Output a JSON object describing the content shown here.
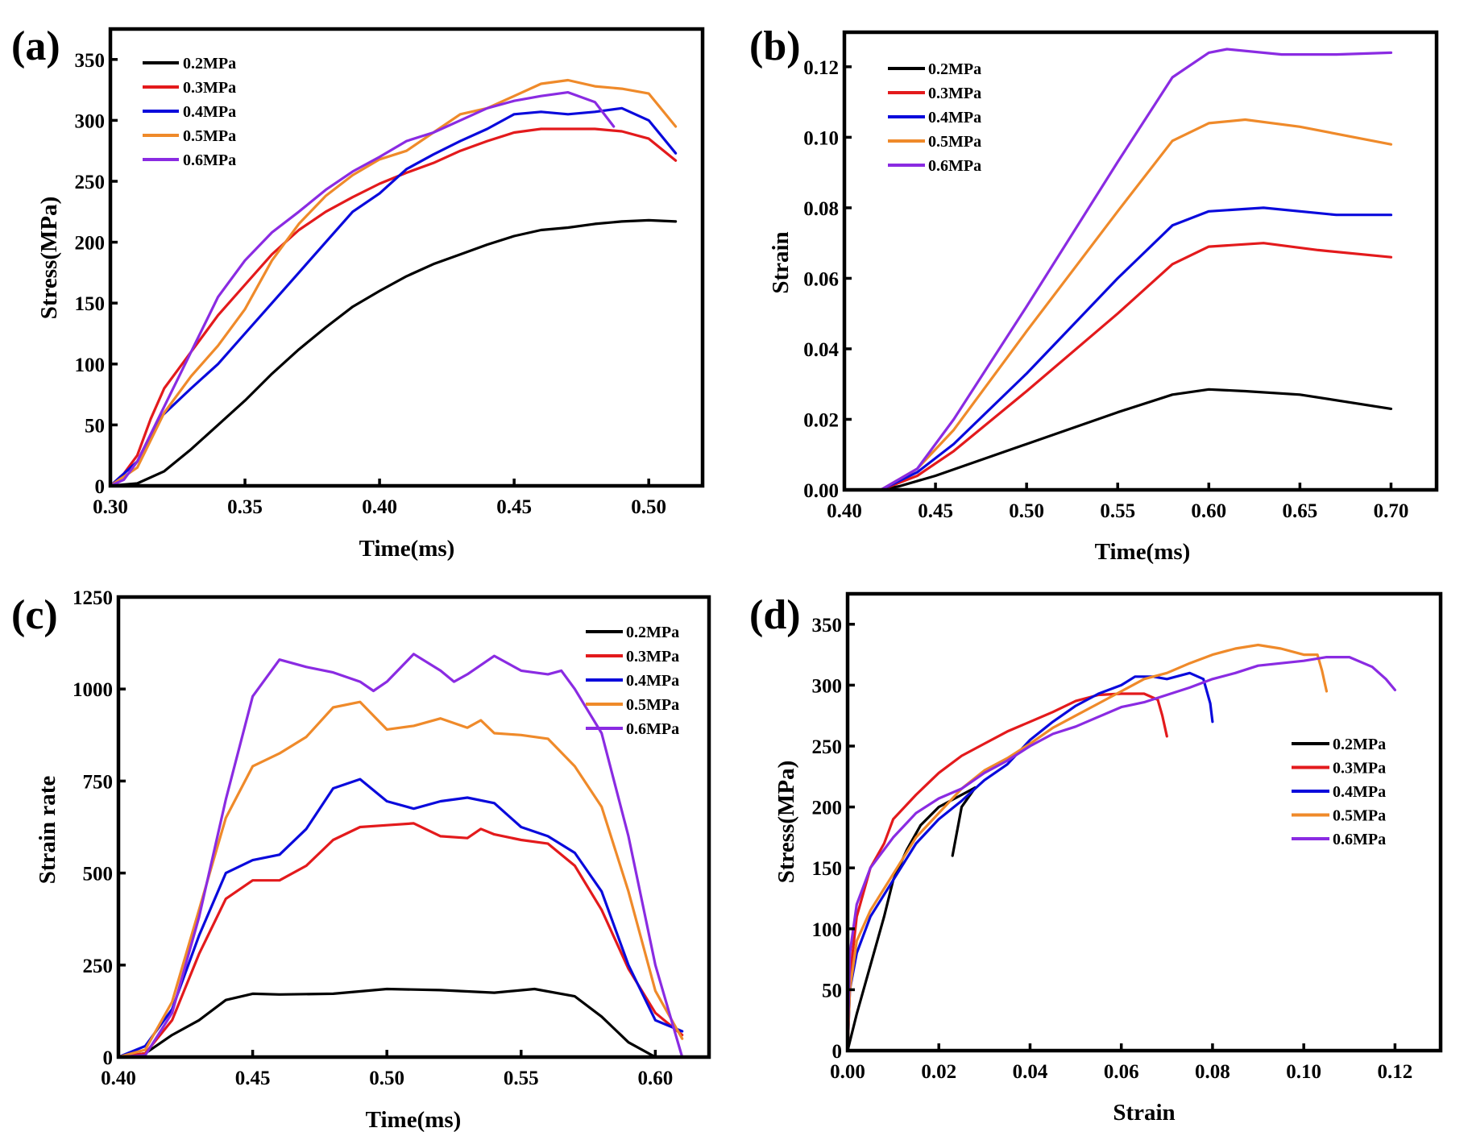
{
  "chart_data": [
    {
      "id": "a",
      "type": "line",
      "panel_label": "(a)",
      "title": "",
      "xlabel": "Time(ms)",
      "ylabel": "Stress(MPa)",
      "xlim": [
        0.3,
        0.52
      ],
      "ylim": [
        0,
        375
      ],
      "xticks": [
        0.3,
        0.35,
        0.4,
        0.45,
        0.5
      ],
      "xtick_labels": [
        "0.30",
        "0.35",
        "0.40",
        "0.45",
        "0.50"
      ],
      "yticks": [
        0,
        50,
        100,
        150,
        200,
        250,
        300,
        350
      ],
      "ytick_labels": [
        "0",
        "50",
        "100",
        "150",
        "200",
        "250",
        "300",
        "350"
      ],
      "grid": false,
      "legend_position": "top-left",
      "series": [
        {
          "name": "0.2MPa",
          "color": "#000000",
          "x": [
            0.3,
            0.31,
            0.32,
            0.33,
            0.34,
            0.35,
            0.36,
            0.37,
            0.38,
            0.39,
            0.4,
            0.41,
            0.42,
            0.43,
            0.44,
            0.45,
            0.46,
            0.47,
            0.48,
            0.49,
            0.5,
            0.51
          ],
          "y": [
            0,
            2,
            12,
            30,
            50,
            70,
            92,
            112,
            130,
            147,
            160,
            172,
            182,
            190,
            198,
            205,
            210,
            212,
            215,
            217,
            218,
            217
          ]
        },
        {
          "name": "0.3MPa",
          "color": "#e31a1c",
          "x": [
            0.3,
            0.305,
            0.31,
            0.315,
            0.32,
            0.325,
            0.33,
            0.34,
            0.35,
            0.36,
            0.37,
            0.38,
            0.39,
            0.4,
            0.41,
            0.42,
            0.43,
            0.44,
            0.45,
            0.46,
            0.47,
            0.48,
            0.49,
            0.5,
            0.51
          ],
          "y": [
            0,
            10,
            25,
            55,
            80,
            95,
            110,
            140,
            165,
            190,
            210,
            225,
            237,
            248,
            257,
            265,
            275,
            283,
            290,
            293,
            293,
            293,
            291,
            285,
            267
          ]
        },
        {
          "name": "0.4MPa",
          "color": "#0a0adc",
          "x": [
            0.3,
            0.31,
            0.318,
            0.33,
            0.34,
            0.35,
            0.36,
            0.37,
            0.38,
            0.39,
            0.4,
            0.41,
            0.42,
            0.43,
            0.44,
            0.45,
            0.46,
            0.47,
            0.48,
            0.49,
            0.5,
            0.51
          ],
          "y": [
            0,
            20,
            55,
            80,
            100,
            125,
            150,
            175,
            200,
            225,
            240,
            260,
            272,
            283,
            293,
            305,
            307,
            305,
            307,
            310,
            300,
            273
          ]
        },
        {
          "name": "0.5MPa",
          "color": "#ef8a2a",
          "x": [
            0.3,
            0.31,
            0.32,
            0.33,
            0.34,
            0.35,
            0.36,
            0.37,
            0.38,
            0.39,
            0.4,
            0.41,
            0.42,
            0.43,
            0.44,
            0.45,
            0.46,
            0.47,
            0.48,
            0.49,
            0.5,
            0.51
          ],
          "y": [
            0,
            15,
            60,
            90,
            115,
            145,
            185,
            215,
            238,
            255,
            268,
            275,
            290,
            305,
            310,
            320,
            330,
            333,
            328,
            326,
            322,
            295
          ]
        },
        {
          "name": "0.6MPa",
          "color": "#8a2be2",
          "x": [
            0.3,
            0.305,
            0.31,
            0.32,
            0.33,
            0.34,
            0.35,
            0.36,
            0.37,
            0.38,
            0.39,
            0.4,
            0.41,
            0.42,
            0.43,
            0.44,
            0.45,
            0.46,
            0.47,
            0.48,
            0.487
          ],
          "y": [
            0,
            5,
            20,
            65,
            110,
            155,
            185,
            208,
            225,
            243,
            258,
            270,
            283,
            290,
            300,
            310,
            316,
            320,
            323,
            315,
            295
          ]
        }
      ]
    },
    {
      "id": "b",
      "type": "line",
      "panel_label": "(b)",
      "title": "",
      "xlabel": "Time(ms)",
      "ylabel": "Strain",
      "xlim": [
        0.4,
        0.725
      ],
      "ylim": [
        0,
        0.1298
      ],
      "xticks": [
        0.4,
        0.45,
        0.5,
        0.55,
        0.6,
        0.65,
        0.7
      ],
      "xtick_labels": [
        "0.40",
        "0.45",
        "0.50",
        "0.55",
        "0.60",
        "0.65",
        "0.70"
      ],
      "yticks": [
        0.0,
        0.02,
        0.04,
        0.06,
        0.08,
        0.1,
        0.12
      ],
      "ytick_labels": [
        "0.00",
        "0.02",
        "0.04",
        "0.06",
        "0.08",
        "0.10",
        "0.12"
      ],
      "grid": false,
      "legend_position": "top-left",
      "series": [
        {
          "name": "0.2MPa",
          "color": "#000000",
          "x": [
            0.4,
            0.42,
            0.43,
            0.45,
            0.5,
            0.55,
            0.58,
            0.6,
            0.62,
            0.65,
            0.7
          ],
          "y": [
            0,
            0,
            0.001,
            0.004,
            0.013,
            0.022,
            0.027,
            0.0285,
            0.028,
            0.027,
            0.023
          ]
        },
        {
          "name": "0.3MPa",
          "color": "#e31a1c",
          "x": [
            0.4,
            0.42,
            0.44,
            0.46,
            0.5,
            0.55,
            0.58,
            0.6,
            0.63,
            0.66,
            0.7
          ],
          "y": [
            0,
            0,
            0.004,
            0.011,
            0.028,
            0.05,
            0.064,
            0.069,
            0.07,
            0.068,
            0.066
          ]
        },
        {
          "name": "0.4MPa",
          "color": "#0a0adc",
          "x": [
            0.4,
            0.42,
            0.44,
            0.46,
            0.5,
            0.55,
            0.58,
            0.6,
            0.63,
            0.67,
            0.7
          ],
          "y": [
            0,
            0,
            0.005,
            0.013,
            0.033,
            0.06,
            0.075,
            0.079,
            0.08,
            0.078,
            0.078
          ]
        },
        {
          "name": "0.5MPa",
          "color": "#ef8a2a",
          "x": [
            0.4,
            0.42,
            0.44,
            0.46,
            0.5,
            0.55,
            0.58,
            0.6,
            0.62,
            0.65,
            0.7
          ],
          "y": [
            0,
            0,
            0.006,
            0.017,
            0.045,
            0.079,
            0.099,
            0.104,
            0.105,
            0.103,
            0.098
          ]
        },
        {
          "name": "0.6MPa",
          "color": "#8a2be2",
          "x": [
            0.4,
            0.42,
            0.44,
            0.46,
            0.5,
            0.55,
            0.58,
            0.6,
            0.61,
            0.64,
            0.67,
            0.7
          ],
          "y": [
            0,
            0,
            0.006,
            0.02,
            0.052,
            0.093,
            0.117,
            0.124,
            0.125,
            0.1235,
            0.1235,
            0.124
          ]
        }
      ]
    },
    {
      "id": "c",
      "type": "line",
      "panel_label": "(c)",
      "title": "",
      "xlabel": "Time(ms)",
      "ylabel": "Strain rate",
      "xlim": [
        0.4,
        0.62
      ],
      "ylim": [
        0,
        1250
      ],
      "xticks": [
        0.4,
        0.45,
        0.5,
        0.55,
        0.6
      ],
      "xtick_labels": [
        "0.40",
        "0.45",
        "0.50",
        "0.55",
        "0.60"
      ],
      "yticks": [
        0,
        250,
        500,
        750,
        1000,
        1250
      ],
      "ytick_labels": [
        "0",
        "250",
        "500",
        "750",
        "1000",
        "1250"
      ],
      "grid": false,
      "legend_position": "top-right",
      "series": [
        {
          "name": "0.2MPa",
          "color": "#000000",
          "x": [
            0.4,
            0.41,
            0.42,
            0.43,
            0.44,
            0.45,
            0.46,
            0.48,
            0.5,
            0.52,
            0.54,
            0.555,
            0.57,
            0.58,
            0.59,
            0.6
          ],
          "y": [
            0,
            10,
            60,
            100,
            155,
            172,
            170,
            172,
            185,
            182,
            175,
            185,
            165,
            110,
            40,
            0
          ]
        },
        {
          "name": "0.3MPa",
          "color": "#e31a1c",
          "x": [
            0.4,
            0.41,
            0.42,
            0.43,
            0.44,
            0.45,
            0.46,
            0.47,
            0.48,
            0.49,
            0.5,
            0.51,
            0.52,
            0.53,
            0.535,
            0.54,
            0.55,
            0.56,
            0.57,
            0.58,
            0.59,
            0.6,
            0.61
          ],
          "y": [
            0,
            10,
            100,
            280,
            430,
            480,
            480,
            520,
            590,
            625,
            630,
            635,
            600,
            595,
            620,
            605,
            590,
            580,
            520,
            400,
            240,
            120,
            60
          ]
        },
        {
          "name": "0.4MPa",
          "color": "#0a0adc",
          "x": [
            0.4,
            0.41,
            0.42,
            0.43,
            0.44,
            0.45,
            0.46,
            0.47,
            0.48,
            0.49,
            0.5,
            0.51,
            0.52,
            0.53,
            0.54,
            0.55,
            0.56,
            0.57,
            0.58,
            0.59,
            0.6,
            0.61
          ],
          "y": [
            0,
            30,
            130,
            330,
            500,
            535,
            550,
            620,
            730,
            755,
            695,
            675,
            695,
            705,
            690,
            625,
            600,
            555,
            450,
            250,
            100,
            70
          ]
        },
        {
          "name": "0.5MPa",
          "color": "#ef8a2a",
          "x": [
            0.4,
            0.41,
            0.42,
            0.43,
            0.44,
            0.45,
            0.46,
            0.47,
            0.48,
            0.49,
            0.5,
            0.51,
            0.52,
            0.53,
            0.535,
            0.54,
            0.55,
            0.56,
            0.57,
            0.58,
            0.59,
            0.6,
            0.61
          ],
          "y": [
            0,
            20,
            150,
            400,
            650,
            790,
            825,
            870,
            950,
            965,
            890,
            900,
            920,
            895,
            915,
            880,
            875,
            865,
            790,
            680,
            450,
            180,
            50
          ]
        },
        {
          "name": "0.6MPa",
          "color": "#8a2be2",
          "x": [
            0.4,
            0.41,
            0.42,
            0.43,
            0.44,
            0.45,
            0.46,
            0.47,
            0.48,
            0.49,
            0.495,
            0.5,
            0.51,
            0.52,
            0.525,
            0.53,
            0.54,
            0.55,
            0.56,
            0.565,
            0.57,
            0.58,
            0.59,
            0.6,
            0.61
          ],
          "y": [
            0,
            5,
            120,
            380,
            700,
            980,
            1080,
            1060,
            1045,
            1020,
            995,
            1020,
            1095,
            1050,
            1020,
            1040,
            1090,
            1050,
            1040,
            1050,
            1000,
            880,
            600,
            250,
            0
          ]
        }
      ]
    },
    {
      "id": "d",
      "type": "line",
      "panel_label": "(d)",
      "title": "",
      "xlabel": "Strain",
      "ylabel": "Stress(MPa)",
      "xlim": [
        0.0,
        0.13
      ],
      "ylim": [
        0,
        375
      ],
      "xticks": [
        0.0,
        0.02,
        0.04,
        0.06,
        0.08,
        0.1,
        0.12
      ],
      "xtick_labels": [
        "0.00",
        "0.02",
        "0.04",
        "0.06",
        "0.08",
        "0.10",
        "0.12"
      ],
      "yticks": [
        0,
        50,
        100,
        150,
        200,
        250,
        300,
        350
      ],
      "ytick_labels": [
        "0",
        "50",
        "100",
        "150",
        "200",
        "250",
        "300",
        "350"
      ],
      "grid": false,
      "legend_position": "right",
      "series": [
        {
          "name": "0.2MPa",
          "color": "#000000",
          "x": [
            0.0,
            0.002,
            0.005,
            0.008,
            0.01,
            0.013,
            0.016,
            0.02,
            0.024,
            0.026,
            0.028,
            0.025,
            0.023
          ],
          "y": [
            0,
            30,
            70,
            110,
            140,
            165,
            185,
            200,
            208,
            212,
            216,
            200,
            160
          ]
        },
        {
          "name": "0.3MPa",
          "color": "#e31a1c",
          "x": [
            0,
            0.0005,
            0.002,
            0.005,
            0.008,
            0.01,
            0.015,
            0.02,
            0.025,
            0.03,
            0.035,
            0.04,
            0.045,
            0.05,
            0.055,
            0.06,
            0.065,
            0.068,
            0.069,
            0.07
          ],
          "y": [
            0,
            60,
            110,
            150,
            170,
            190,
            210,
            228,
            242,
            252,
            262,
            270,
            278,
            287,
            292,
            293,
            293,
            288,
            275,
            258
          ]
        },
        {
          "name": "0.4MPa",
          "color": "#0a0adc",
          "x": [
            0,
            0.0005,
            0.002,
            0.005,
            0.01,
            0.015,
            0.02,
            0.025,
            0.03,
            0.035,
            0.04,
            0.045,
            0.05,
            0.055,
            0.06,
            0.063,
            0.067,
            0.07,
            0.075,
            0.078,
            0.0795,
            0.08
          ],
          "y": [
            0,
            50,
            80,
            110,
            140,
            170,
            190,
            205,
            222,
            235,
            255,
            270,
            283,
            293,
            300,
            307,
            307,
            305,
            310,
            305,
            285,
            270
          ]
        },
        {
          "name": "0.5MPa",
          "color": "#ef8a2a",
          "x": [
            0,
            0.0005,
            0.002,
            0.005,
            0.01,
            0.015,
            0.02,
            0.025,
            0.03,
            0.035,
            0.04,
            0.045,
            0.05,
            0.055,
            0.06,
            0.065,
            0.07,
            0.075,
            0.08,
            0.085,
            0.09,
            0.095,
            0.1,
            0.103,
            0.104,
            0.105
          ],
          "y": [
            0,
            50,
            90,
            115,
            145,
            175,
            195,
            215,
            230,
            240,
            252,
            265,
            275,
            285,
            295,
            305,
            310,
            318,
            325,
            330,
            333,
            330,
            325,
            325,
            312,
            295
          ]
        },
        {
          "name": "0.6MPa",
          "color": "#8a2be2",
          "x": [
            0,
            0.0005,
            0.002,
            0.005,
            0.01,
            0.015,
            0.02,
            0.025,
            0.03,
            0.035,
            0.04,
            0.045,
            0.05,
            0.055,
            0.06,
            0.065,
            0.07,
            0.075,
            0.08,
            0.085,
            0.09,
            0.095,
            0.1,
            0.105,
            0.11,
            0.115,
            0.118,
            0.12
          ],
          "y": [
            0,
            80,
            120,
            150,
            175,
            195,
            207,
            215,
            228,
            238,
            250,
            260,
            266,
            274,
            282,
            286,
            292,
            298,
            305,
            310,
            316,
            318,
            320,
            323,
            323,
            315,
            305,
            296
          ]
        }
      ]
    }
  ]
}
